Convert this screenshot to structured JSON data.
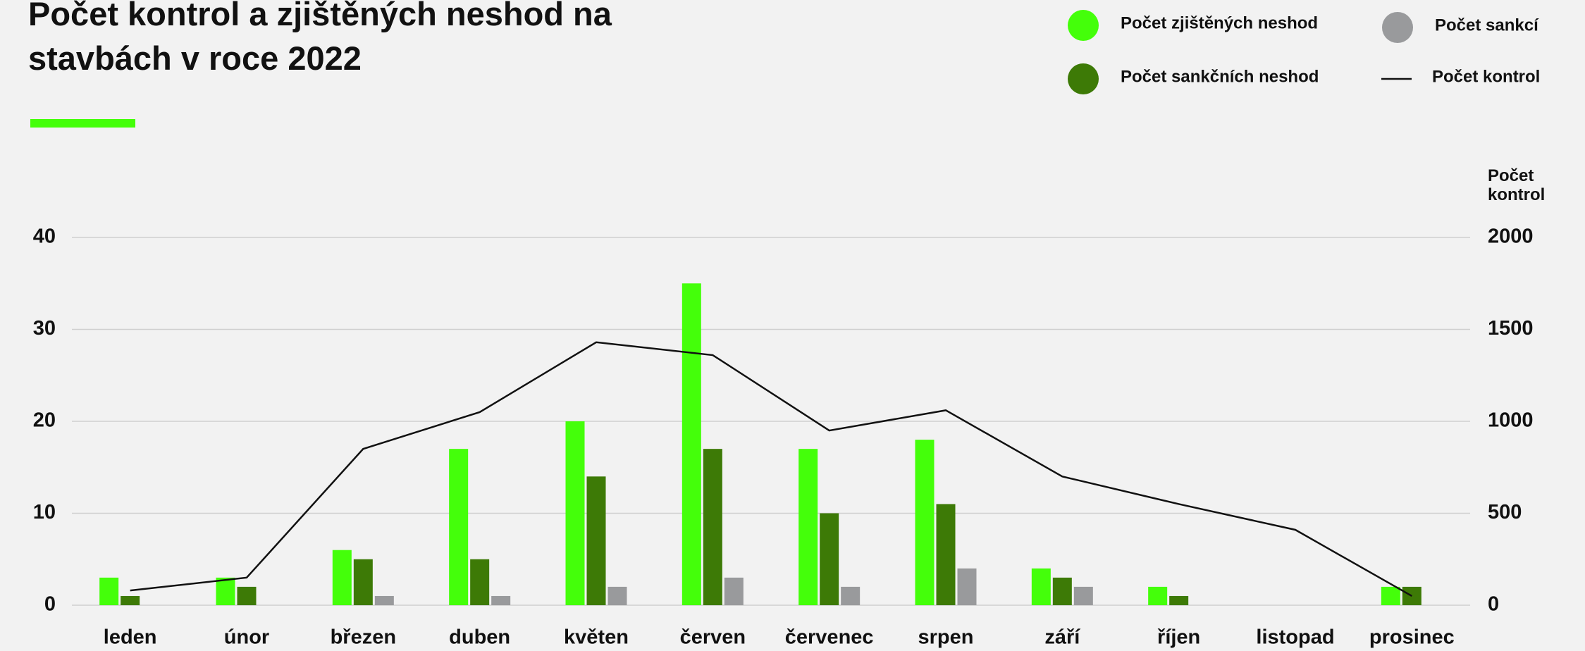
{
  "chart_data": {
    "type": "bar",
    "title": "Počet kontrol a zjištěných neshod na stavbách v roce 2022",
    "y2_label": "Počet kontrol",
    "categories": [
      "leden",
      "únor",
      "březen",
      "duben",
      "květen",
      "červen",
      "červenec",
      "srpen",
      "září",
      "říjen",
      "listopad",
      "prosinec"
    ],
    "series": [
      {
        "name": "Počet zjištěných neshod",
        "type": "bar",
        "color": "#44ff0a",
        "values": [
          3,
          3,
          6,
          17,
          20,
          35,
          17,
          18,
          4,
          2,
          0,
          2
        ]
      },
      {
        "name": "Počet sankčních neshod",
        "type": "bar",
        "color": "#3d7a06",
        "values": [
          1,
          2,
          5,
          5,
          14,
          17,
          10,
          11,
          3,
          1,
          0,
          2
        ]
      },
      {
        "name": "Počet sankcí",
        "type": "bar",
        "color": "#999a9c",
        "values": [
          0,
          0,
          1,
          1,
          2,
          3,
          2,
          4,
          2,
          0,
          0,
          0
        ]
      },
      {
        "name": "Počet kontrol",
        "type": "line",
        "axis": "y2",
        "color": "#111111",
        "values": [
          80,
          150,
          850,
          1050,
          1430,
          1360,
          950,
          1060,
          700,
          550,
          410,
          50
        ]
      }
    ],
    "ylim": [
      0,
      40
    ],
    "yticks": [
      0,
      10,
      20,
      30,
      40
    ],
    "y2lim": [
      0,
      2000
    ],
    "y2ticks": [
      0,
      500,
      1000,
      1500,
      2000
    ],
    "grid": true,
    "legend": "top-right"
  }
}
